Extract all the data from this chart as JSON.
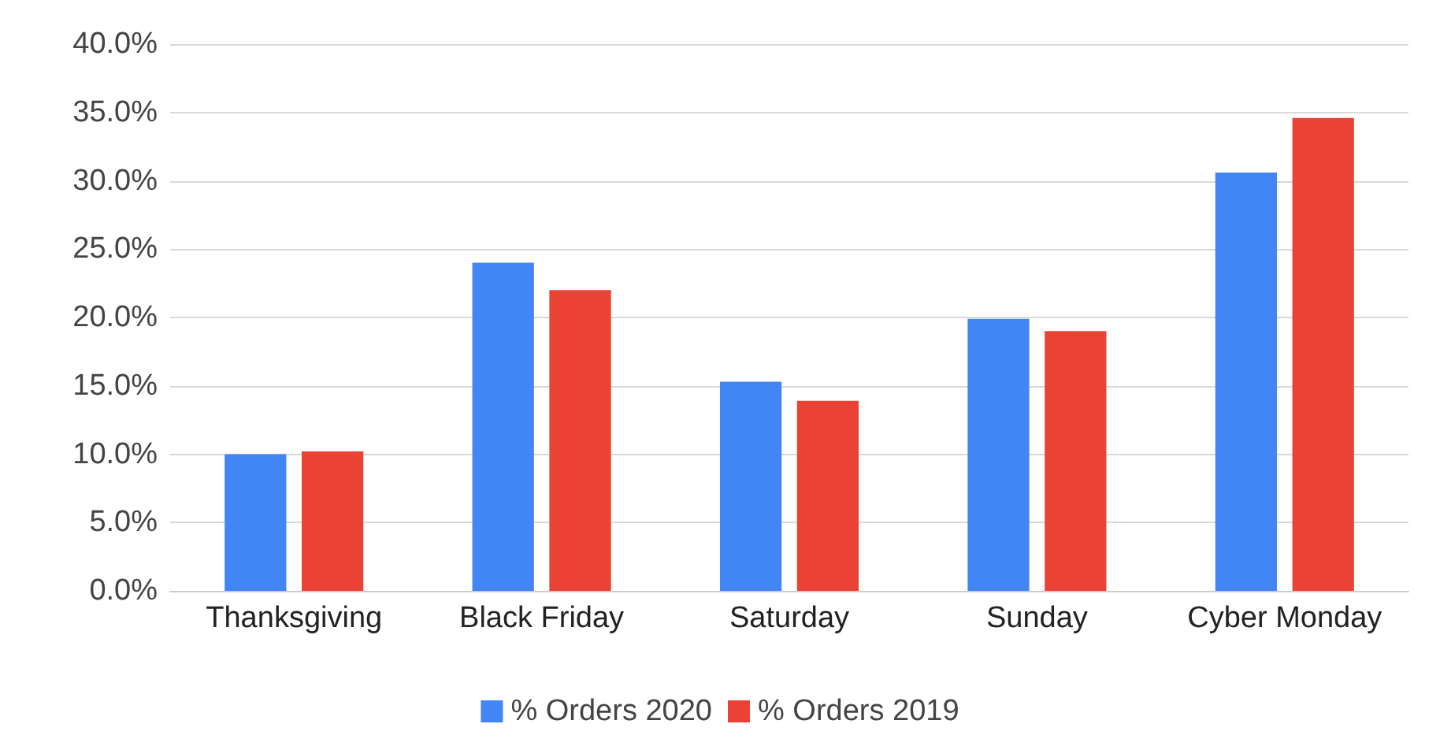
{
  "chart_data": {
    "type": "bar",
    "categories": [
      "Thanksgiving",
      "Black Friday",
      "Saturday",
      "Sunday",
      "Cyber Monday"
    ],
    "series": [
      {
        "name": "% Orders 2020",
        "color": "#4285f4",
        "values": [
          10.0,
          24.0,
          15.3,
          19.9,
          30.6
        ]
      },
      {
        "name": "% Orders 2019",
        "color": "#ea4335",
        "values": [
          10.2,
          22.0,
          13.9,
          19.0,
          34.6
        ]
      }
    ],
    "ylim": [
      0,
      40
    ],
    "yticks": [
      {
        "value": 0,
        "label": "0.0%"
      },
      {
        "value": 5,
        "label": "5.0%"
      },
      {
        "value": 10,
        "label": "10.0%"
      },
      {
        "value": 15,
        "label": "15.0%"
      },
      {
        "value": 20,
        "label": "20.0%"
      },
      {
        "value": 25,
        "label": "25.0%"
      },
      {
        "value": 30,
        "label": "30.0%"
      },
      {
        "value": 35,
        "label": "35.0%"
      },
      {
        "value": 40,
        "label": "40.0%"
      }
    ],
    "grid": "y",
    "legend": "bottom"
  }
}
